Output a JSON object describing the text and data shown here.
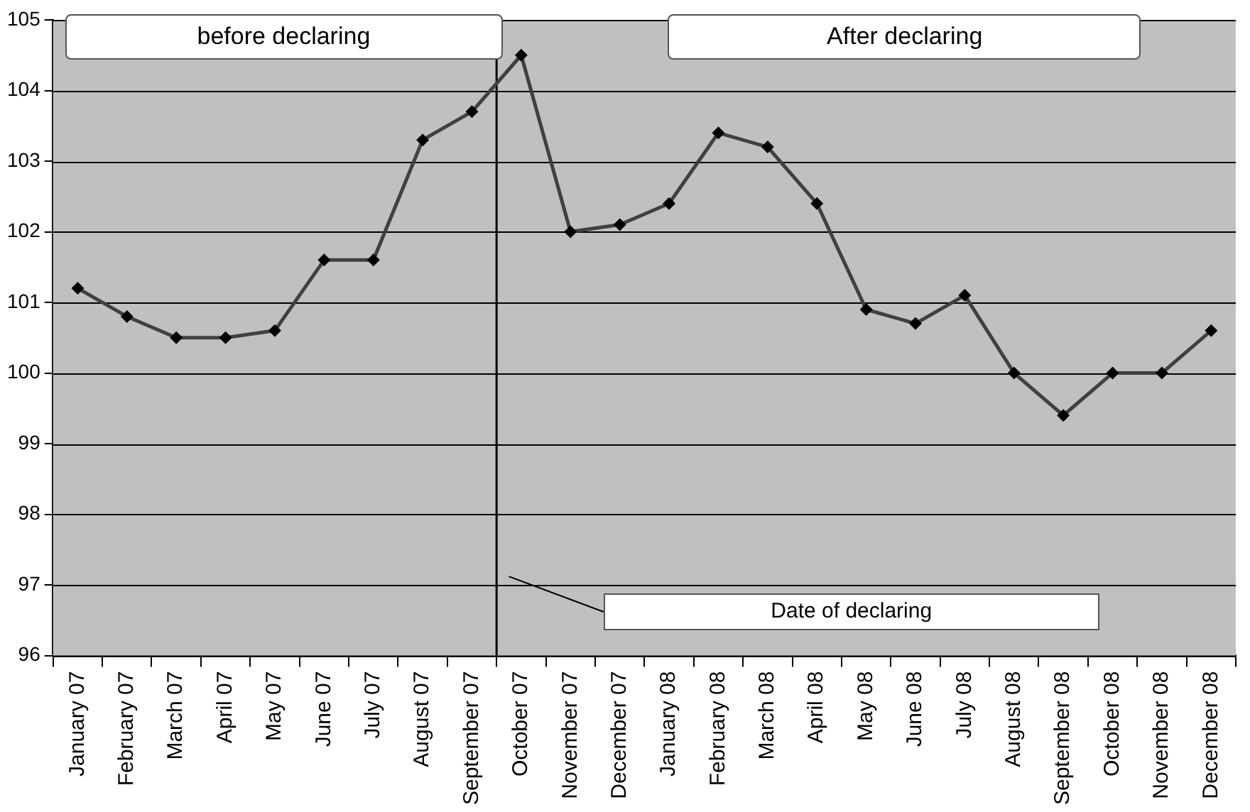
{
  "chart_data": {
    "type": "line",
    "categories": [
      "January 07",
      "February 07",
      "March 07",
      "April 07",
      "May 07",
      "June 07",
      "July 07",
      "August 07",
      "September 07",
      "October 07",
      "November 07",
      "December 07",
      "January 08",
      "February 08",
      "March 08",
      "April 08",
      "May 08",
      "June 08",
      "July 08",
      "August 08",
      "September 08",
      "October 08",
      "November 08",
      "December 08"
    ],
    "series": [
      {
        "color": "#404040",
        "values": [
          101.2,
          100.8,
          100.5,
          100.5,
          100.6,
          101.6,
          101.6,
          103.3,
          103.7,
          104.5,
          102.0,
          102.1,
          102.4,
          103.4,
          103.2,
          102.4,
          100.9,
          100.7,
          101.1,
          100.0,
          99.4,
          100.0,
          100.0,
          100.6
        ]
      }
    ],
    "ylim": [
      96,
      105
    ],
    "yticks": [
      96,
      97,
      98,
      99,
      100,
      101,
      102,
      103,
      104,
      105
    ],
    "grid": "y",
    "legend": false,
    "marker": "diamond",
    "line_style": "solid",
    "ref_lines": [
      {
        "axis": "x",
        "value": "October 07",
        "label": "Date of declaring",
        "color": "#000000"
      }
    ],
    "annotations": [
      "before declaring",
      "After declaring"
    ]
  }
}
